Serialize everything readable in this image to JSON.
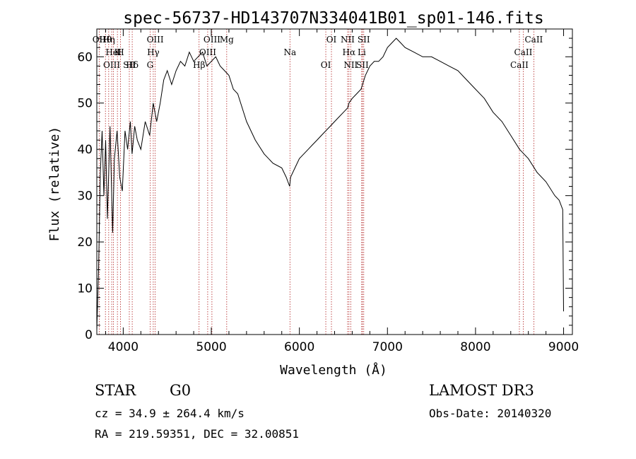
{
  "chart_data": {
    "type": "line",
    "title": "spec-56737-HD143707N334041B01_sp01-146.fits",
    "xlabel": "Wavelength (Å)",
    "ylabel": "Flux (relative)",
    "xlim": [
      3700,
      9100
    ],
    "ylim": [
      0,
      66
    ],
    "x_ticks": [
      4000,
      5000,
      6000,
      7000,
      8000,
      9000
    ],
    "y_ticks": [
      0,
      10,
      20,
      30,
      40,
      50,
      60
    ],
    "grid": false,
    "series": [
      {
        "name": "flux",
        "x": [
          3700,
          3720,
          3740,
          3760,
          3780,
          3800,
          3820,
          3850,
          3880,
          3900,
          3930,
          3960,
          3990,
          4020,
          4050,
          4080,
          4100,
          4130,
          4160,
          4200,
          4250,
          4300,
          4340,
          4380,
          4420,
          4460,
          4500,
          4550,
          4600,
          4650,
          4700,
          4750,
          4800,
          4850,
          4900,
          4950,
          5000,
          5050,
          5100,
          5150,
          5200,
          5250,
          5300,
          5400,
          5500,
          5600,
          5700,
          5800,
          5850,
          5890,
          5900,
          5950,
          6000,
          6050,
          6100,
          6150,
          6200,
          6250,
          6300,
          6350,
          6400,
          6450,
          6500,
          6550,
          6563,
          6600,
          6650,
          6700,
          6750,
          6800,
          6850,
          6900,
          6950,
          7000,
          7050,
          7100,
          7150,
          7200,
          7300,
          7400,
          7500,
          7600,
          7700,
          7800,
          7900,
          8000,
          8100,
          8200,
          8300,
          8400,
          8500,
          8600,
          8700,
          8800,
          8900,
          8950,
          8990,
          9000
        ],
        "y": [
          1,
          14,
          35,
          44,
          30,
          42,
          25,
          45,
          22,
          38,
          44,
          34,
          31,
          44,
          40,
          46,
          39,
          45,
          42,
          40,
          46,
          43,
          50,
          46,
          50,
          55,
          57,
          54,
          57,
          59,
          58,
          61,
          59,
          60,
          61,
          58,
          59,
          60,
          58,
          57,
          56,
          53,
          52,
          46,
          42,
          39,
          37,
          36,
          34,
          32,
          34,
          36,
          38,
          39,
          40,
          41,
          42,
          43,
          44,
          45,
          46,
          47,
          48,
          49,
          50,
          51,
          52,
          53,
          56,
          58,
          59,
          59,
          60,
          62,
          63,
          64,
          63,
          62,
          61,
          60,
          60,
          59,
          58,
          57,
          55,
          53,
          51,
          48,
          46,
          43,
          40,
          38,
          35,
          33,
          30,
          29,
          27,
          5
        ]
      }
    ],
    "line_annotations": [
      {
        "label": "Hθ",
        "x": 3798
      },
      {
        "label": "K",
        "x": 3934
      },
      {
        "label": "Hδ",
        "x": 4102
      },
      {
        "label": "OII",
        "x": 3727
      },
      {
        "label": "HeI",
        "x": 3889
      },
      {
        "label": "SII",
        "x": 4069
      },
      {
        "label": "OIII",
        "x": 4363
      },
      {
        "label": "Hγ",
        "x": 4341
      },
      {
        "label": "G",
        "x": 4305
      },
      {
        "label": "OIII",
        "x": 5007
      },
      {
        "label": "OIII",
        "x": 4959
      },
      {
        "label": "OIII",
        "x": 3869
      },
      {
        "label": "Hη",
        "x": 3835
      },
      {
        "label": "H",
        "x": 3969
      },
      {
        "label": "Hβ",
        "x": 4861
      },
      {
        "label": "Mg",
        "x": 5175
      },
      {
        "label": "Na",
        "x": 5893
      },
      {
        "label": "OI",
        "x": 6300
      },
      {
        "label": "OI",
        "x": 6364
      },
      {
        "label": "Hα",
        "x": 6563
      },
      {
        "label": "SII",
        "x": 6716
      },
      {
        "label": "NII",
        "x": 6548
      },
      {
        "label": "Li",
        "x": 6708
      },
      {
        "label": "NII",
        "x": 6583
      },
      {
        "label": "SII",
        "x": 6731
      },
      {
        "label": "CaII",
        "x": 8542
      },
      {
        "label": "CaII",
        "x": 8498
      },
      {
        "label": "CaII",
        "x": 8662
      }
    ]
  },
  "info": {
    "object_class": "STAR",
    "subclass": "G0",
    "cz": "cz = 34.9 ± 264.4 km/s",
    "coords": "RA = 219.59351, DEC =  32.00851",
    "survey": "LAMOST DR3",
    "obs_date": "Obs-Date: 20140320"
  },
  "colors": {
    "line": "#000000",
    "marker": "#b22222",
    "background": "#ffffff"
  }
}
